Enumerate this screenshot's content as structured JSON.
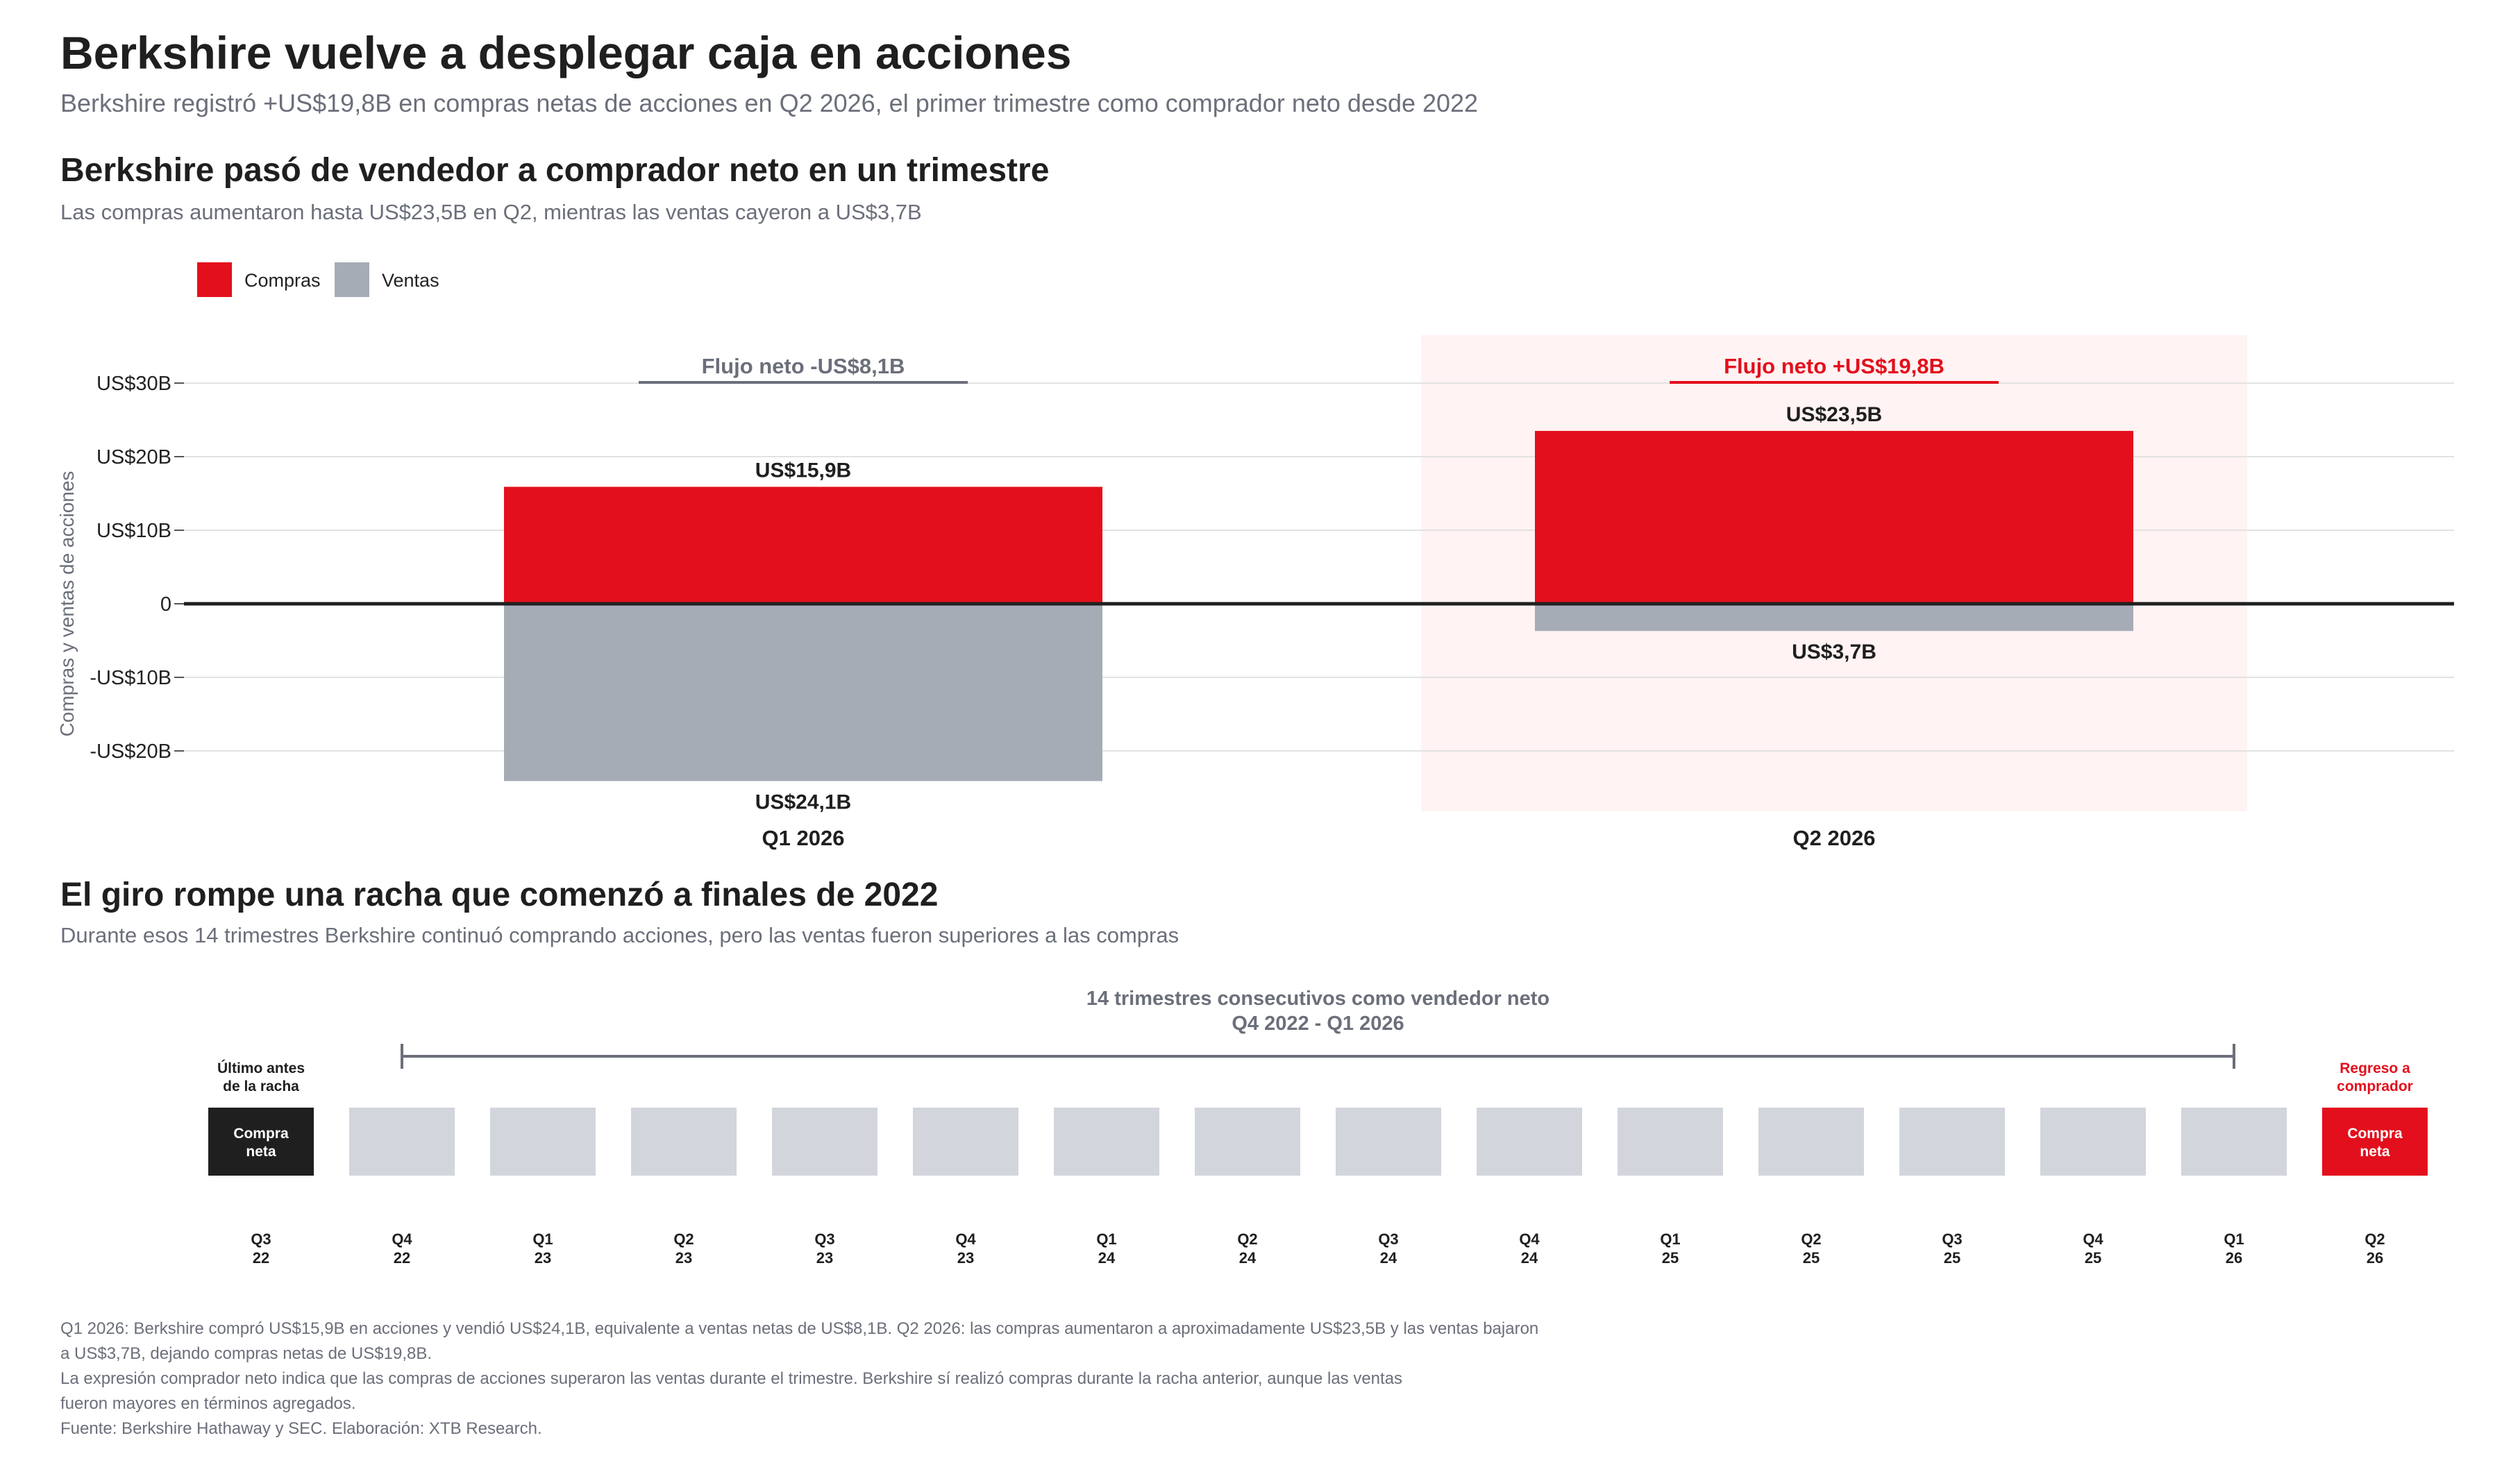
{
  "header": {
    "title": "Berkshire vuelve a desplegar caja en acciones",
    "subtitle": "Berkshire registró +US$19,8B en compras netas de acciones en Q2 2026, el primer trimestre como comprador neto desde 2022"
  },
  "section1": {
    "title": "Berkshire pasó de vendedor a comprador neto en un trimestre",
    "subtitle": "Las compras aumentaron hasta US$23,5B en Q2, mientras las ventas cayeron a US$3,7B"
  },
  "section2": {
    "title": "El giro rompe una racha que comenzó a finales de 2022",
    "subtitle": "Durante esos 14 trimestres Berkshire continuó comprando acciones, pero las ventas fueron superiores a las compras"
  },
  "colors": {
    "compras": "#e30f1c",
    "ventas": "#a6acb6",
    "highlight_bg": "#fff3f3",
    "neutral_box": "#d2d5dc",
    "dark_box": "#1f1f1f",
    "net_neg": "#6b6f7a",
    "net_pos": "#e30f1c"
  },
  "chart_data": [
    {
      "type": "bar",
      "categories": [
        "Q1 2026",
        "Q2 2026"
      ],
      "series": [
        {
          "name": "Compras",
          "values": [
            15.9,
            23.5
          ]
        },
        {
          "name": "Ventas",
          "values": [
            -24.1,
            -3.7
          ]
        }
      ],
      "data_labels": {
        "compras": [
          "US$15,9B",
          "US$23,5B"
        ],
        "ventas": [
          "US$24,1B",
          "US$3,7B"
        ]
      },
      "net_labels": [
        "Flujo neto  -US$8,1B",
        "Flujo neto  +US$19,8B"
      ],
      "net_values": [
        -8.1,
        19.8
      ],
      "highlight_category": "Q2 2026",
      "ylabel": "Compras y ventas de acciones",
      "yticks": [
        30,
        20,
        10,
        0,
        -10,
        -20
      ],
      "ytick_labels": [
        "US$30B",
        "US$20B",
        "US$10B",
        "0",
        "-US$10B",
        "-US$20B"
      ],
      "ylim": [
        -24.1,
        30
      ],
      "grid": true,
      "legend_position": "top-left"
    },
    {
      "type": "timeline",
      "quarters": [
        {
          "label": [
            "Q3",
            "22"
          ],
          "status": "Compra neta",
          "box_text": [
            "Compra",
            "neta"
          ],
          "kind": "dark"
        },
        {
          "label": [
            "Q4",
            "22"
          ],
          "kind": "neutral"
        },
        {
          "label": [
            "Q1",
            "23"
          ],
          "kind": "neutral"
        },
        {
          "label": [
            "Q2",
            "23"
          ],
          "kind": "neutral"
        },
        {
          "label": [
            "Q3",
            "23"
          ],
          "kind": "neutral"
        },
        {
          "label": [
            "Q4",
            "23"
          ],
          "kind": "neutral"
        },
        {
          "label": [
            "Q1",
            "24"
          ],
          "kind": "neutral"
        },
        {
          "label": [
            "Q2",
            "24"
          ],
          "kind": "neutral"
        },
        {
          "label": [
            "Q3",
            "24"
          ],
          "kind": "neutral"
        },
        {
          "label": [
            "Q4",
            "24"
          ],
          "kind": "neutral"
        },
        {
          "label": [
            "Q1",
            "25"
          ],
          "kind": "neutral"
        },
        {
          "label": [
            "Q2",
            "25"
          ],
          "kind": "neutral"
        },
        {
          "label": [
            "Q3",
            "25"
          ],
          "kind": "neutral"
        },
        {
          "label": [
            "Q4",
            "25"
          ],
          "kind": "neutral"
        },
        {
          "label": [
            "Q1",
            "26"
          ],
          "kind": "neutral"
        },
        {
          "label": [
            "Q2",
            "26"
          ],
          "status": "Compra neta",
          "box_text": [
            "Compra",
            "neta"
          ],
          "kind": "red"
        }
      ],
      "streak_title": "14 trimestres consecutivos como vendedor neto",
      "streak_range": "Q4 2022 - Q1 2026",
      "streak_quarters": 14,
      "left_note": [
        "Último antes",
        "de la racha"
      ],
      "right_note": [
        "Regreso a",
        "comprador"
      ]
    }
  ],
  "footer": {
    "lines": [
      "Q1 2026: Berkshire compró US$15,9B en acciones y vendió US$24,1B, equivalente a ventas netas de US$8,1B. Q2 2026: las compras aumentaron a aproximadamente US$23,5B y las ventas bajaron",
      "a US$3,7B, dejando compras netas de US$19,8B.",
      "La expresión comprador neto indica que las compras de acciones superaron las ventas durante el trimestre. Berkshire sí realizó compras durante la racha anterior, aunque las ventas",
      "fueron mayores en términos agregados.",
      "Fuente: Berkshire Hathaway y SEC. Elaboración: XTB Research."
    ]
  }
}
